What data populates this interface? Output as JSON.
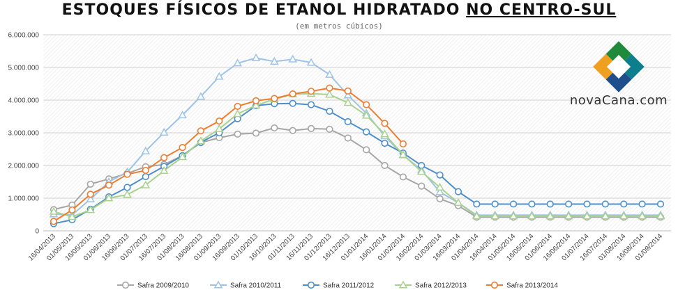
{
  "title_part1": "ESTOQUES FÍSICOS DE ETANOL HIDRATADO ",
  "title_part2": "NO CENTRO-SUL",
  "subtitle": "(em metros cúbicos)",
  "logo_text": "novaCana.com",
  "chart_data": {
    "type": "line",
    "title": "ESTOQUES FÍSICOS DE ETANOL HIDRATADO NO CENTRO-SUL",
    "subtitle": "(em metros cúbicos)",
    "ylim": [
      0,
      6000000
    ],
    "y_ticks": [
      "0",
      "1.000.000",
      "2.000.000",
      "3.000.000",
      "4.000.000",
      "5.000.000",
      "6.000.000"
    ],
    "grid": true,
    "legend_position": "bottom",
    "categories": [
      "16/04/2013",
      "01/05/2013",
      "16/05/2013",
      "01/06/2013",
      "16/06/2013",
      "01/07/2013",
      "16/07/2013",
      "01/08/2013",
      "16/08/2013",
      "01/09/2013",
      "16/09/2013",
      "01/10/2013",
      "16/10/2013",
      "01/11/2013",
      "16/11/2013",
      "01/12/2013",
      "16/12/2013",
      "01/01/2014",
      "16/01/2014",
      "01/02/2014",
      "16/02/2014",
      "01/03/2014",
      "16/03/2014",
      "01/04/2014",
      "16/04/2014",
      "01/05/2014",
      "16/05/2014",
      "01/06/2014",
      "16/06/2014",
      "01/07/2014",
      "16/07/2014",
      "01/08/2014",
      "16/08/2014",
      "01/09/2014"
    ],
    "series": [
      {
        "name": "Safra 2009/2010",
        "color": "#a6a6a6",
        "marker": "circle",
        "values": [
          650000,
          790000,
          1430000,
          1590000,
          1760000,
          1960000,
          2030000,
          2300000,
          2700000,
          2850000,
          2960000,
          2990000,
          3150000,
          3070000,
          3130000,
          3110000,
          2840000,
          2480000,
          2000000,
          1650000,
          1370000,
          980000,
          770000,
          420000,
          420000,
          420000,
          420000,
          420000,
          420000,
          420000,
          420000,
          420000,
          420000,
          420000
        ]
      },
      {
        "name": "Safra 2010/2011",
        "color": "#9dc3e6",
        "marker": "triangle",
        "values": [
          510000,
          490000,
          970000,
          1500000,
          1800000,
          2440000,
          3010000,
          3540000,
          4110000,
          4720000,
          5130000,
          5290000,
          5180000,
          5250000,
          5150000,
          4780000,
          4150000,
          3600000,
          2900000,
          2320000,
          1860000,
          1190000,
          860000,
          480000,
          480000,
          480000,
          480000,
          480000,
          480000,
          480000,
          480000,
          480000,
          480000,
          480000
        ]
      },
      {
        "name": "Safra 2011/2012",
        "color": "#4f8fc9",
        "marker": "circle",
        "values": [
          220000,
          340000,
          660000,
          1040000,
          1330000,
          1660000,
          1970000,
          2300000,
          2710000,
          3000000,
          3430000,
          3830000,
          3890000,
          3900000,
          3860000,
          3660000,
          3340000,
          3030000,
          2680000,
          2380000,
          2000000,
          1710000,
          1200000,
          820000,
          820000,
          820000,
          820000,
          820000,
          820000,
          820000,
          820000,
          820000,
          820000,
          820000
        ]
      },
      {
        "name": "Safra 2012/2013",
        "color": "#a9d18e",
        "marker": "triangle",
        "values": [
          590000,
          430000,
          640000,
          1000000,
          1110000,
          1400000,
          1840000,
          2260000,
          2750000,
          3120000,
          3580000,
          3840000,
          4030000,
          4180000,
          4200000,
          4170000,
          3920000,
          3530000,
          2960000,
          2330000,
          1810000,
          1330000,
          860000,
          450000,
          450000,
          450000,
          450000,
          450000,
          450000,
          450000,
          450000,
          450000,
          450000,
          450000
        ]
      },
      {
        "name": "Safra 2013/2014",
        "color": "#ed7d31",
        "marker": "circle",
        "values": [
          290000,
          640000,
          1120000,
          1400000,
          1730000,
          1850000,
          2240000,
          2550000,
          3060000,
          3360000,
          3810000,
          3980000,
          4050000,
          4190000,
          4270000,
          4370000,
          4280000,
          3860000,
          3290000,
          2660000,
          null,
          null,
          null,
          null,
          null,
          null,
          null,
          null,
          null,
          null,
          null,
          null,
          null,
          null
        ]
      }
    ]
  }
}
